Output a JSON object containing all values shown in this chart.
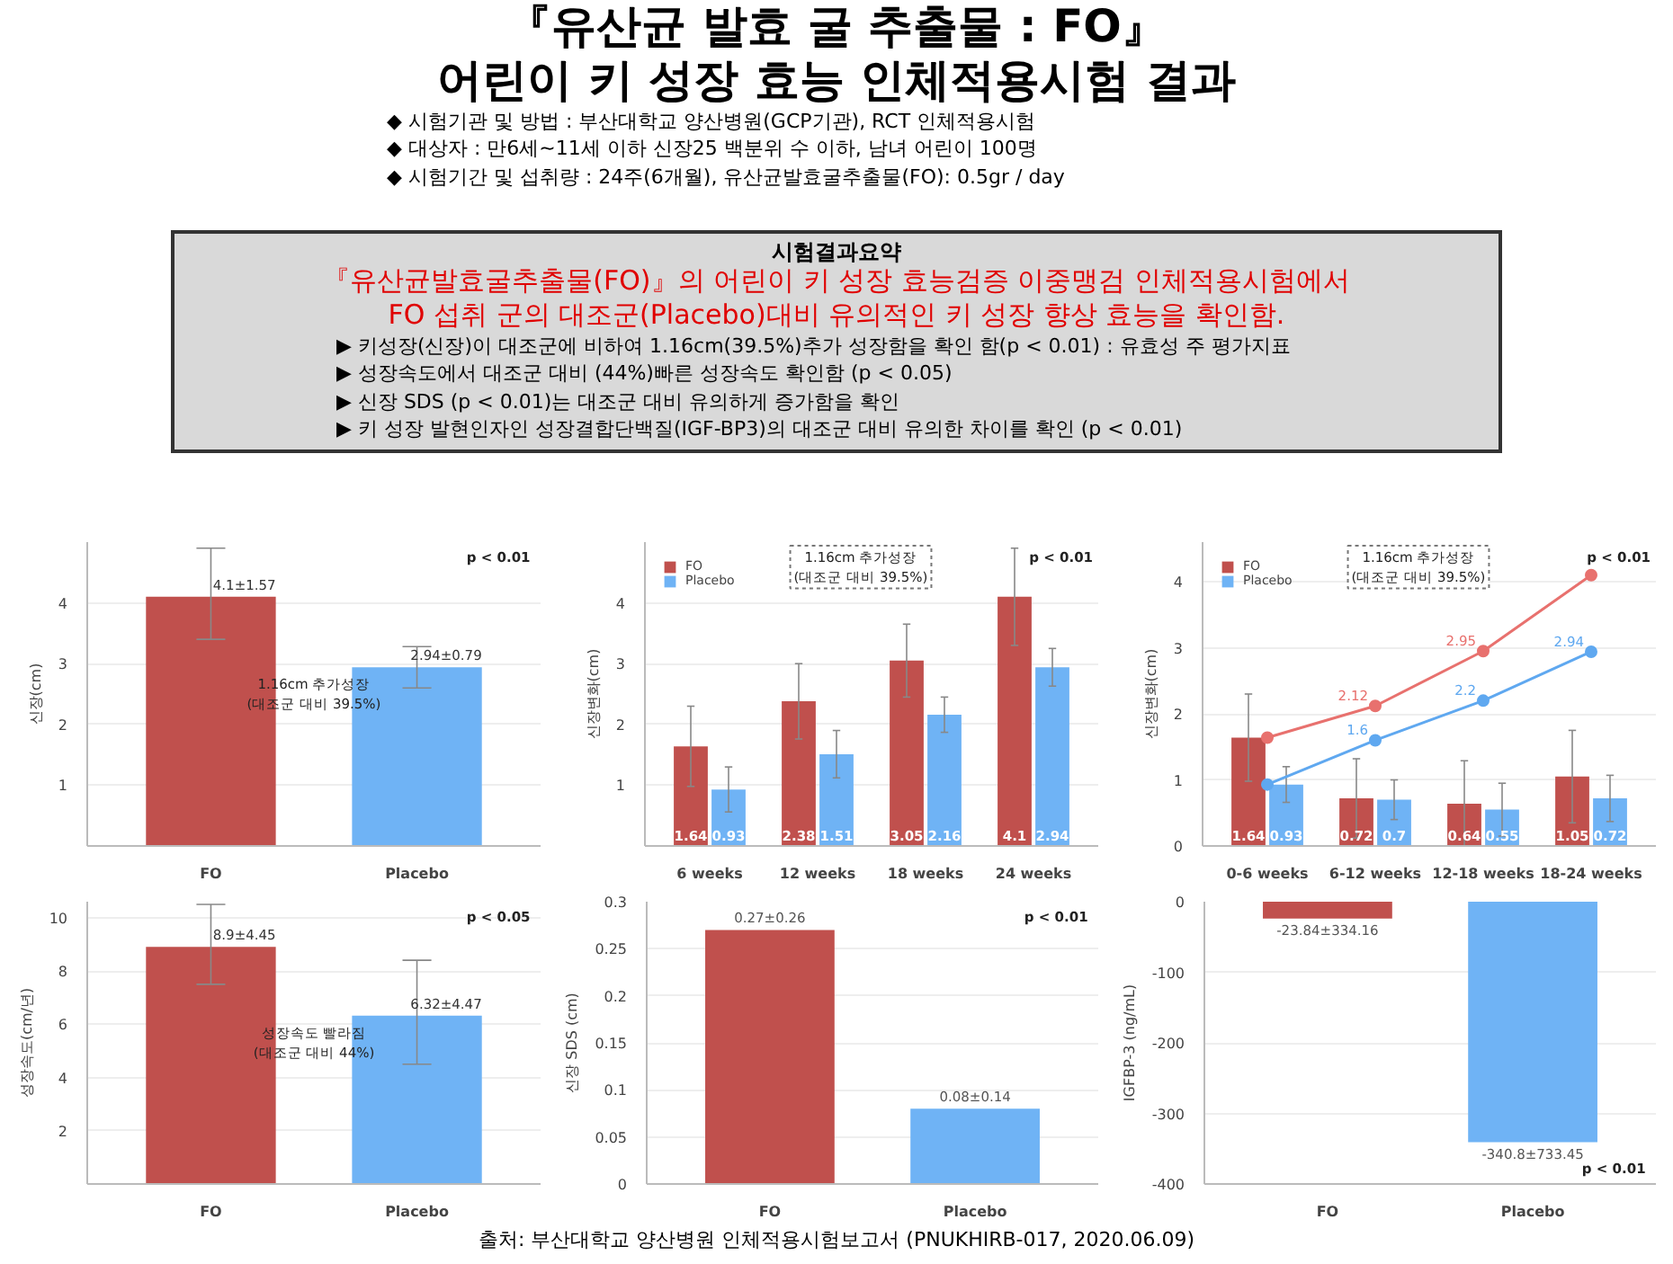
{
  "chart_data": [
    {
      "type": "other",
      "title": "『유산균 발효 굴 추출물 : FO』\n어린이 키 성장 효능 인체적용시험 결과",
      "annotations": [
        "◆ 시험기관 및 방법 : 부산대학교 양산병원(GCP기관), RCT 인체적용시험",
        "◆ 대상자 : 만6세~11세  이하 신장25 백분위 수 이하, 남녀 어린이 100명",
        "◆ 시험기간 및 섭취량 : 24주(6개월), 유산균발효굴추출물(FO): 0.5gr / day"
      ]
    },
    {
      "type": "other",
      "title": "시험결과요약",
      "subtitle": "『유산균발효굴추출물(FO)』의 어린이 키 성장 효능검증 이중맹검 인체적용시험에서\nFO 섭취 군의 대조군(Placebo)대비 유의적인 키 성장 향상 효능을 확인함.",
      "annotations": [
        "▶ 키성장(신장)이 대조군에 비하여 1.16cm(39.5%)추가 성장함을 확인 함(p < 0.01) : 유효성 주 평가지표",
        "▶ 성장속도에서 대조군 대비 (44%)빠른 성장속도 확인함 (p < 0.05)",
        "▶ 신장 SDS (p < 0.01)는 대조군 대비 유의하게 증가함을 확인",
        "▶ 키 성장 발현인자인 성장결합단백질(IGF-BP3)의 대조군 대비 유의한 차이를 확인 (p < 0.01)"
      ]
    },
    {
      "type": "bar",
      "categories": [
        "FO",
        "Placebo"
      ],
      "values": [
        4.1,
        2.94
      ],
      "colors": [
        "#c0504d",
        "#6fb3f5"
      ],
      "errors": [
        [
          3.4,
          4.9
        ],
        [
          2.6,
          3.28
        ]
      ],
      "value_labels": [
        "4.1±1.57",
        "2.94±0.79"
      ],
      "ylabel": "신장(cm)",
      "ylim": [
        0,
        5
      ],
      "yticks": [
        1,
        2,
        3,
        4
      ],
      "grid": "y",
      "annotations": [
        "p < 0.01",
        "1.16cm 추가성장\n(대조군 대비 39.5%)"
      ]
    },
    {
      "type": "bar",
      "categories": [
        "6 weeks",
        "12 weeks",
        "18 weeks",
        "24 weeks"
      ],
      "series": [
        {
          "name": "FO",
          "color": "#c0504d",
          "values": [
            1.64,
            2.38,
            3.05,
            4.1
          ],
          "errors": [
            0.66,
            0.62,
            0.6,
            0.8
          ]
        },
        {
          "name": "Placebo",
          "color": "#6fb3f5",
          "values": [
            0.93,
            1.51,
            2.16,
            2.94
          ],
          "errors": [
            0.37,
            0.39,
            0.29,
            0.31
          ]
        }
      ],
      "data_labels": true,
      "legend": "top left",
      "ylabel": "신장변화(cm)",
      "ylim": [
        0,
        5
      ],
      "yticks": [
        1,
        2,
        3,
        4
      ],
      "grid": "y",
      "annotations": [
        "p < 0.01",
        "1.16cm 추가성장\n(대조군 대비 39.5%)"
      ]
    },
    {
      "type": "bar",
      "categories": [
        "0-6 weeks",
        "6-12 weeks",
        "12-18 weeks",
        "18-24 weeks"
      ],
      "series": [
        {
          "name": "FO",
          "color": "#c0504d",
          "values": [
            1.64,
            0.72,
            0.64,
            1.05
          ],
          "errors": [
            0.66,
            0.6,
            0.65,
            0.7
          ]
        },
        {
          "name": "Placebo",
          "color": "#6fb3f5",
          "values": [
            0.93,
            0.7,
            0.55,
            0.72
          ],
          "errors": [
            0.27,
            0.3,
            0.4,
            0.35
          ]
        },
        {
          "type": "line",
          "color": "#e8716e",
          "values": [
            1.64,
            2.12,
            2.95,
            4.1
          ],
          "value_labels": [
            null,
            "2.12",
            "2.95",
            null
          ]
        },
        {
          "type": "line",
          "color": "#5fa8f0",
          "values": [
            0.93,
            1.6,
            2.2,
            2.94
          ],
          "value_labels": [
            null,
            "1.6",
            "2.2",
            "2.94"
          ]
        }
      ],
      "data_labels": true,
      "legend": "top left",
      "marker": "circle",
      "ylabel": "신장변화(cm)",
      "ylim": [
        0,
        4.6
      ],
      "yticks": [
        0,
        1,
        2,
        3,
        4
      ],
      "grid": "y",
      "annotations": [
        "p < 0.01",
        "1.16cm 추가성장\n(대조군 대비 39.5%)"
      ]
    },
    {
      "type": "bar",
      "categories": [
        "FO",
        "Placebo"
      ],
      "values": [
        8.9,
        6.32
      ],
      "colors": [
        "#c0504d",
        "#6fb3f5"
      ],
      "errors": [
        [
          7.5,
          10.5
        ],
        [
          4.5,
          8.4
        ]
      ],
      "value_labels": [
        "8.9±4.45",
        "6.32±4.47"
      ],
      "ylabel": "성장속도(cm/년)",
      "ylim": [
        0,
        10.6
      ],
      "yticks": [
        2,
        4,
        6,
        8,
        10
      ],
      "grid": "y",
      "annotations": [
        "p < 0.05",
        "성장속도 빨라짐\n(대조군 대비 44%)"
      ]
    },
    {
      "type": "bar",
      "categories": [
        "FO",
        "Placebo"
      ],
      "values": [
        0.27,
        0.08
      ],
      "colors": [
        "#c0504d",
        "#6fb3f5"
      ],
      "value_labels": [
        "0.27±0.26",
        "0.08±0.14"
      ],
      "ylabel": "신장 SDS (cm)",
      "ylim": [
        0,
        0.3
      ],
      "yticks": [
        0,
        0.05,
        0.1,
        0.15,
        0.2,
        0.25,
        0.3
      ],
      "grid": "y",
      "annotations": [
        "p < 0.01"
      ]
    },
    {
      "type": "bar",
      "categories": [
        "FO",
        "Placebo"
      ],
      "values": [
        -23.84,
        -340.8
      ],
      "colors": [
        "#c0504d",
        "#6fb3f5"
      ],
      "value_labels": [
        "-23.84±334.16",
        "-340.8±733.45"
      ],
      "ylabel": "IGFBP-3 (ng/mL)",
      "ylim": [
        -400,
        0
      ],
      "yticks": [
        -400,
        -300,
        -200,
        -100,
        0
      ],
      "grid": "y",
      "annotations": [
        "p < 0.01"
      ]
    },
    {
      "type": "other",
      "annotations": [
        "출처: 부산대학교 양산병원 인체적용시험보고서 (PNUKHIRB-017, 2020.06.09)"
      ]
    }
  ]
}
